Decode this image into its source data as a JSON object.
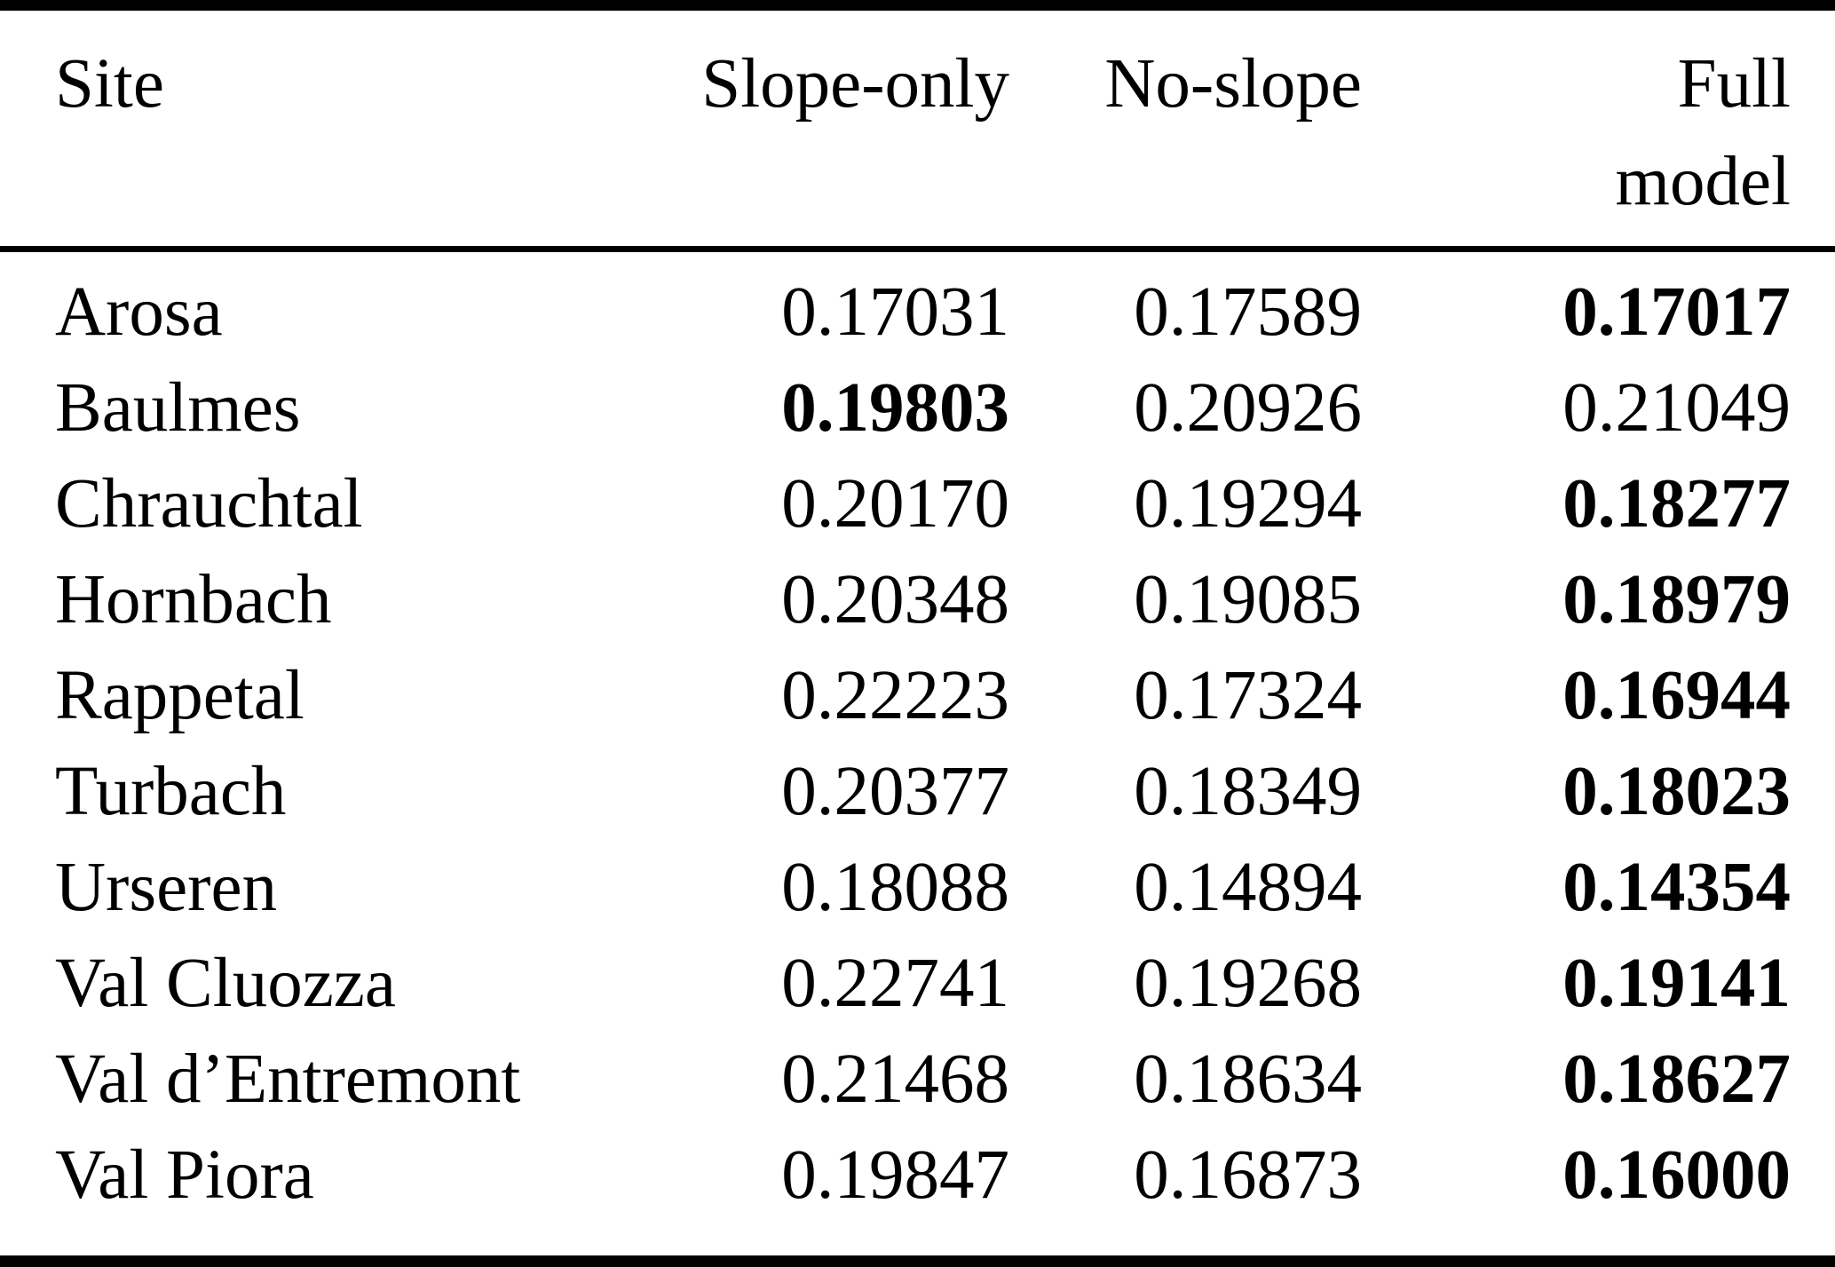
{
  "header": {
    "site": "Site",
    "slope_only": "Slope-only",
    "no_slope": "No-slope",
    "full_line1": "Full",
    "full_line2": "model"
  },
  "rows": [
    {
      "site": "Arosa",
      "slope_only": "0.17031",
      "no_slope": "0.17589",
      "full_model": "0.17017",
      "best": "full_model"
    },
    {
      "site": "Baulmes",
      "slope_only": "0.19803",
      "no_slope": "0.20926",
      "full_model": "0.21049",
      "best": "slope_only"
    },
    {
      "site": "Chrauchtal",
      "slope_only": "0.20170",
      "no_slope": "0.19294",
      "full_model": "0.18277",
      "best": "full_model"
    },
    {
      "site": "Hornbach",
      "slope_only": "0.20348",
      "no_slope": "0.19085",
      "full_model": "0.18979",
      "best": "full_model"
    },
    {
      "site": "Rappetal",
      "slope_only": "0.22223",
      "no_slope": "0.17324",
      "full_model": "0.16944",
      "best": "full_model"
    },
    {
      "site": "Turbach",
      "slope_only": "0.20377",
      "no_slope": "0.18349",
      "full_model": "0.18023",
      "best": "full_model"
    },
    {
      "site": "Urseren",
      "slope_only": "0.18088",
      "no_slope": "0.14894",
      "full_model": "0.14354",
      "best": "full_model"
    },
    {
      "site": "Val Cluozza",
      "slope_only": "0.22741",
      "no_slope": "0.19268",
      "full_model": "0.19141",
      "best": "full_model"
    },
    {
      "site": "Val d’Entremont",
      "slope_only": "0.21468",
      "no_slope": "0.18634",
      "full_model": "0.18627",
      "best": "full_model"
    },
    {
      "site": "Val Piora",
      "slope_only": "0.19847",
      "no_slope": "0.16873",
      "full_model": "0.16000",
      "best": "full_model"
    }
  ],
  "colors": {
    "background": "#ffffff",
    "text": "#000000",
    "rule": "#000000"
  }
}
